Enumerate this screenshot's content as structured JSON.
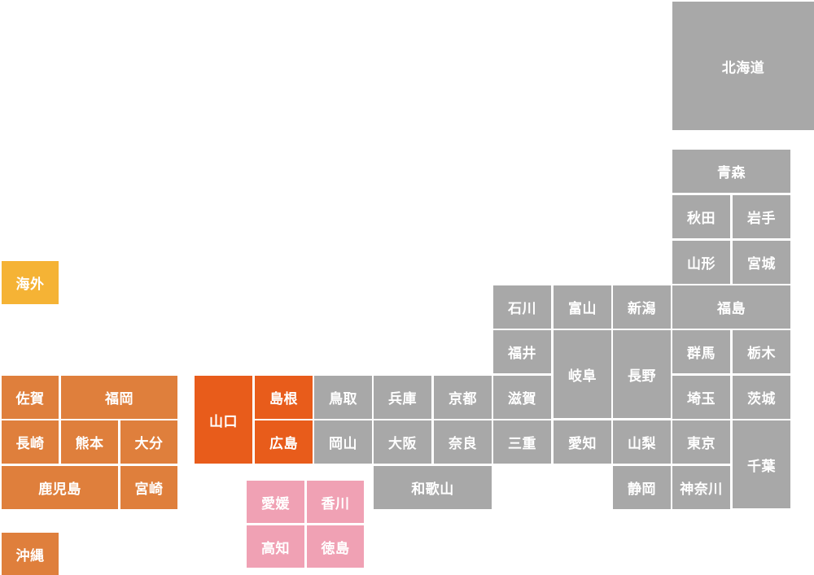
{
  "prefectures": {
    "hokkaido": "北海道",
    "aomori": "青森",
    "akita": "秋田",
    "iwate": "岩手",
    "yamagata": "山形",
    "miyagi": "宮城",
    "fukushima": "福島",
    "ishikawa": "石川",
    "toyama": "富山",
    "niigata": "新潟",
    "fukui": "福井",
    "gifu": "岐阜",
    "nagano": "長野",
    "gunma": "群馬",
    "tochigi": "栃木",
    "shimane": "島根",
    "tottori": "鳥取",
    "hyogo": "兵庫",
    "kyoto": "京都",
    "shiga": "滋賀",
    "saitama": "埼玉",
    "ibaraki": "茨城",
    "yamaguchi": "山口",
    "hiroshima": "広島",
    "okayama": "岡山",
    "osaka": "大阪",
    "nara": "奈良",
    "mie": "三重",
    "aichi": "愛知",
    "yamanashi": "山梨",
    "tokyo": "東京",
    "chiba": "千葉",
    "wakayama": "和歌山",
    "shizuoka": "静岡",
    "kanagawa": "神奈川",
    "saga": "佐賀",
    "fukuoka": "福岡",
    "nagasaki": "長崎",
    "kumamoto": "熊本",
    "oita": "大分",
    "kagoshima": "鹿児島",
    "miyazaki": "宮崎",
    "ehime": "愛媛",
    "kagawa": "香川",
    "kochi": "高知",
    "tokushima": "徳島",
    "okinawa": "沖縄",
    "overseas": "海外"
  },
  "colors": {
    "default": "#a8a8a8",
    "kyushu": "#df7f3c",
    "yamaguchi_region": "#e85c1b",
    "shikoku": "#f0a1b4",
    "overseas": "#f5b335"
  }
}
